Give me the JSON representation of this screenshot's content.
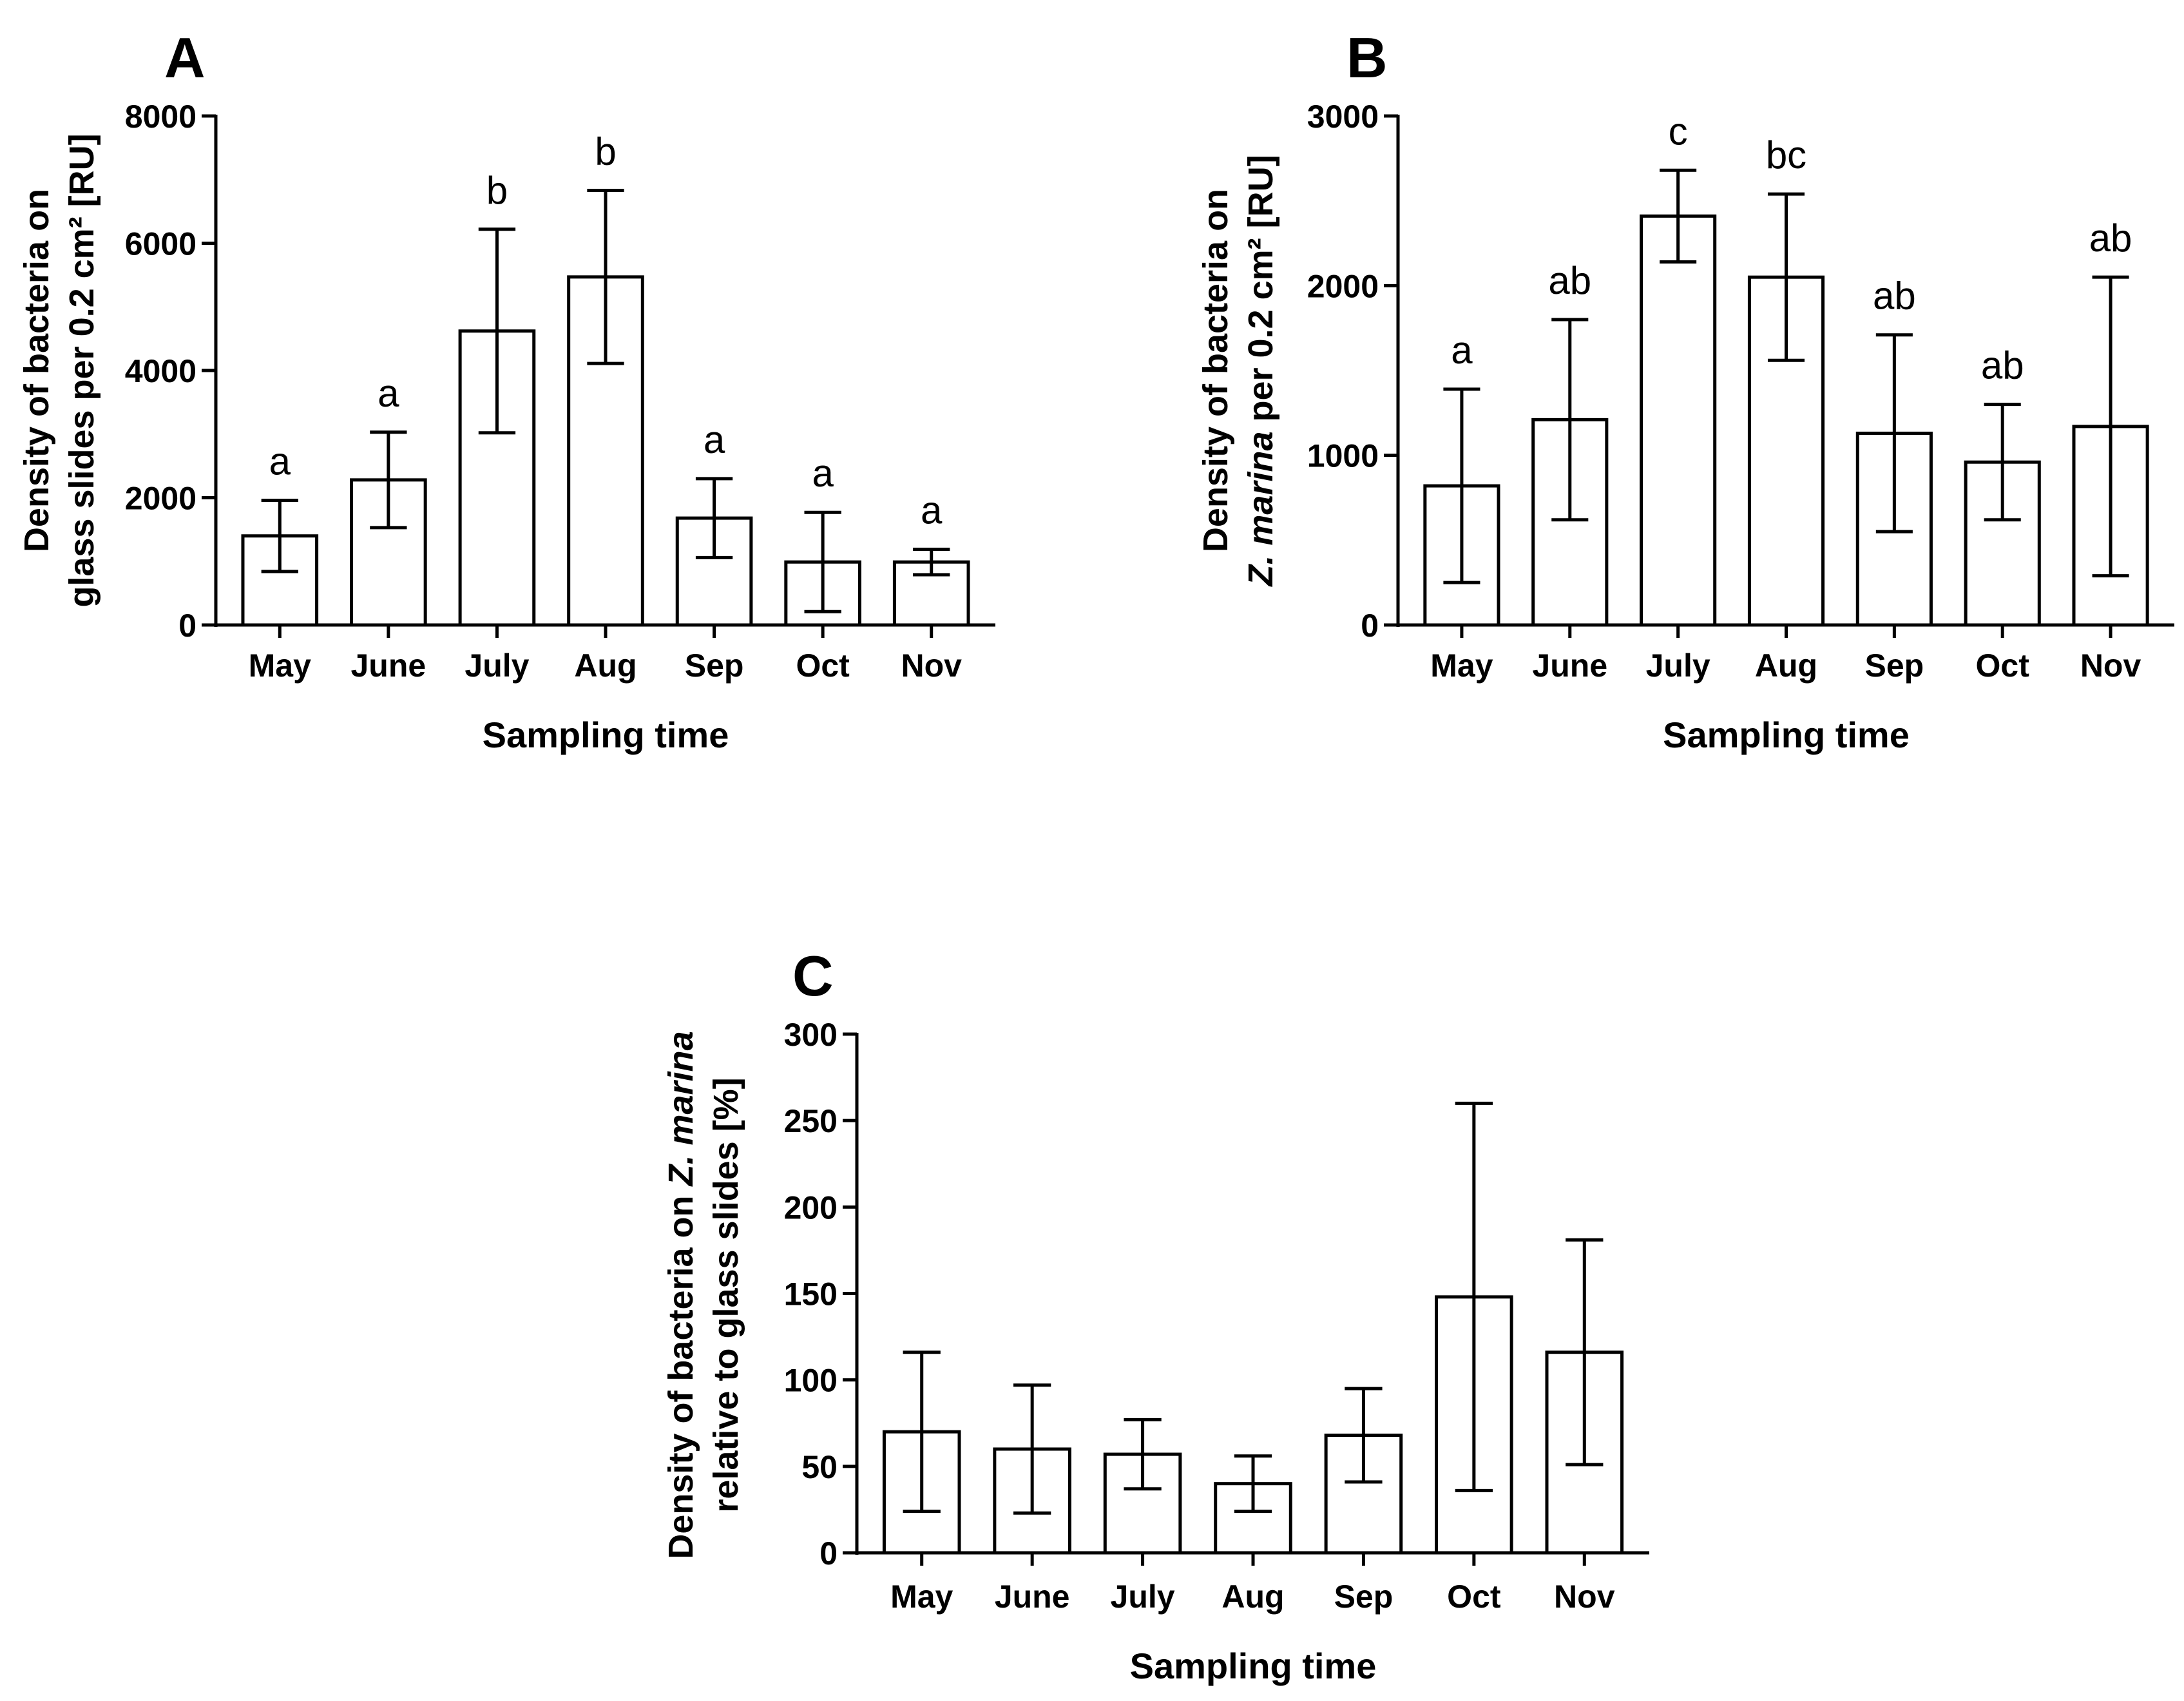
{
  "chart_data": [
    {
      "panel": "A",
      "type": "bar",
      "categories": [
        "May",
        "June",
        "July",
        "Aug",
        "Sep",
        "Oct",
        "Nov"
      ],
      "values": [
        1400,
        2280,
        4620,
        5470,
        1680,
        990,
        990
      ],
      "error": [
        560,
        750,
        1600,
        1360,
        620,
        780,
        200
      ],
      "significance": [
        "a",
        "a",
        "b",
        "b",
        "a",
        "a",
        "a"
      ],
      "ylabel_lines": [
        "Density of bacteria on",
        "glass slides per 0.2 cm² [RU]"
      ],
      "xlabel": "Sampling time",
      "yticks": [
        0,
        2000,
        4000,
        6000,
        8000
      ],
      "ylim": [
        0,
        8000
      ]
    },
    {
      "panel": "B",
      "type": "bar",
      "categories": [
        "May",
        "June",
        "July",
        "Aug",
        "Sep",
        "Oct",
        "Nov"
      ],
      "values": [
        820,
        1210,
        2410,
        2050,
        1130,
        960,
        1170
      ],
      "error": [
        570,
        590,
        270,
        490,
        580,
        340,
        880
      ],
      "significance": [
        "a",
        "ab",
        "c",
        "bc",
        "ab",
        "ab",
        "ab"
      ],
      "ylabel_lines": [
        "Density of bacteria on",
        "Z. marina per 0.2 cm² [RU]"
      ],
      "xlabel": "Sampling time",
      "yticks": [
        0,
        1000,
        2000,
        3000
      ],
      "ylim": [
        0,
        3000
      ]
    },
    {
      "panel": "C",
      "type": "bar",
      "categories": [
        "May",
        "June",
        "July",
        "Aug",
        "Sep",
        "Oct",
        "Nov"
      ],
      "values": [
        70,
        60,
        57,
        40,
        68,
        148,
        116
      ],
      "error": [
        46,
        37,
        20,
        16,
        27,
        112,
        65
      ],
      "significance": [],
      "ylabel_lines": [
        "Density of bacteria on Z. marina",
        "relative to glass slides [%]"
      ],
      "xlabel": "Sampling time",
      "yticks": [
        0,
        50,
        100,
        150,
        200,
        250,
        300
      ],
      "ylim": [
        0,
        300
      ]
    }
  ]
}
